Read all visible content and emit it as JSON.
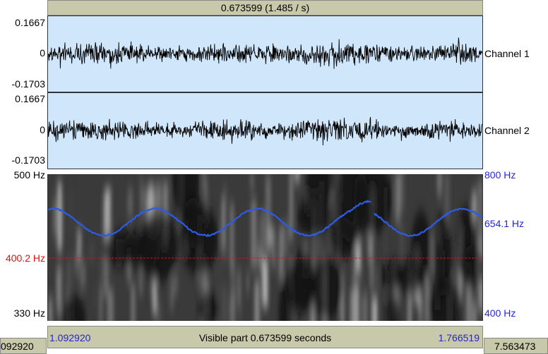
{
  "selection_header": "0.673599 (1.485 / s)",
  "channels": [
    {
      "name": "Channel 1",
      "max_label": "0.1667",
      "zero_label": "0",
      "min_label": "-0.1703"
    },
    {
      "name": "Channel 2",
      "max_label": "0.1667",
      "zero_label": "0",
      "min_label": "-0.1703"
    }
  ],
  "spectrogram": {
    "left_top_label": "500 Hz",
    "left_bottom_label": "330 Hz",
    "cursor_label": "400.2 Hz",
    "right_top_label": "800 Hz",
    "right_mid_label": "654.1 Hz",
    "right_bottom_label": "400 Hz"
  },
  "bottom": {
    "start_time": "1.092920",
    "visible_text": "Visible part 0.673599 seconds",
    "end_time": "1.766519",
    "left_total": "092920",
    "right_total": "7.563473"
  },
  "colors": {
    "channel_bg": "#cfe6fb",
    "bar_bg": "#c8c8aa",
    "pitch": "#2b5ce6",
    "cursor": "#e01010",
    "time_labels": "#2424d8"
  }
}
